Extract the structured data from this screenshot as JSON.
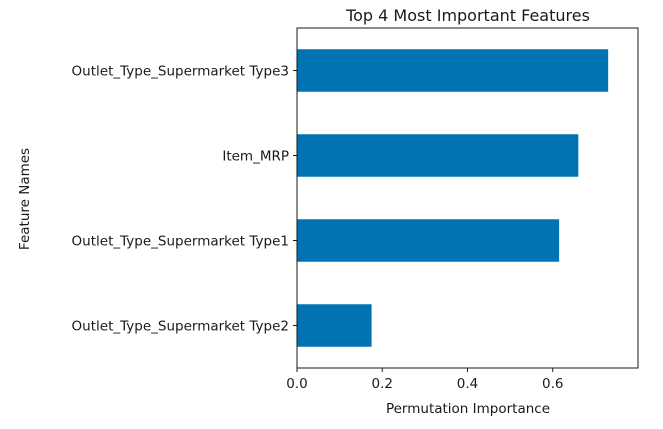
{
  "chart_data": {
    "type": "bar",
    "orientation": "horizontal",
    "title": "Top 4 Most Important Features",
    "xlabel": "Permutation Importance",
    "ylabel": "Feature Names",
    "categories": [
      "Outlet_Type_Supermarket Type3",
      "Item_MRP",
      "Outlet_Type_Supermarket Type1",
      "Outlet_Type_Supermarket Type2"
    ],
    "values": [
      0.73,
      0.66,
      0.615,
      0.175
    ],
    "xlim": [
      0,
      0.8
    ],
    "xticks": [
      "0.0",
      "0.2",
      "0.4",
      "0.6"
    ],
    "bar_color": "#0173b2",
    "grid": false,
    "legend": "none"
  }
}
